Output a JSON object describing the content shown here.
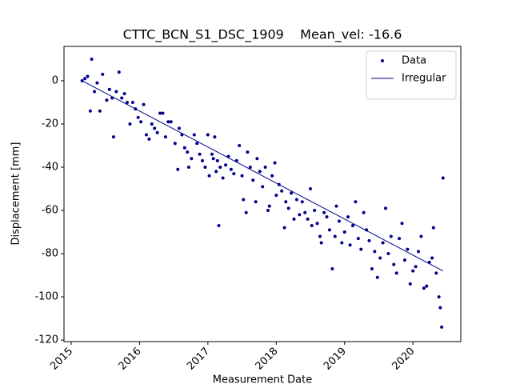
{
  "chart_data": {
    "type": "scatter",
    "title": "CTTC_BCN_S1_DSC_1909    Mean_vel: -16.6",
    "xlabel": "Measurement Date",
    "ylabel": "Displacement [mm]",
    "xlim": [
      2014.895,
      2020.7
    ],
    "ylim": [
      -120.7,
      15.9
    ],
    "xticks": [
      2015,
      2016,
      2017,
      2018,
      2019,
      2020
    ],
    "yticks": [
      -120,
      -100,
      -80,
      -60,
      -40,
      -20,
      0
    ],
    "grid": false,
    "legend": "upper right",
    "series": [
      {
        "name": "Data",
        "kind": "points",
        "color": "#00008b",
        "x": [
          2015.16,
          2015.2,
          2015.24,
          2015.28,
          2015.3,
          2015.34,
          2015.38,
          2015.42,
          2015.46,
          2015.52,
          2015.56,
          2015.6,
          2015.62,
          2015.66,
          2015.7,
          2015.74,
          2015.78,
          2015.82,
          2015.86,
          2015.9,
          2015.94,
          2015.98,
          2016.02,
          2016.06,
          2016.1,
          2016.14,
          2016.18,
          2016.22,
          2016.26,
          2016.3,
          2016.34,
          2016.38,
          2016.42,
          2016.46,
          2016.52,
          2016.56,
          2016.58,
          2016.62,
          2016.66,
          2016.7,
          2016.72,
          2016.76,
          2016.8,
          2016.84,
          2016.88,
          2016.92,
          2016.96,
          2017.0,
          2017.02,
          2017.06,
          2017.08,
          2017.1,
          2017.12,
          2017.14,
          2017.16,
          2017.18,
          2017.22,
          2017.26,
          2017.3,
          2017.34,
          2017.38,
          2017.42,
          2017.46,
          2017.5,
          2017.52,
          2017.56,
          2017.58,
          2017.62,
          2017.66,
          2017.7,
          2017.72,
          2017.76,
          2017.8,
          2017.84,
          2017.88,
          2017.9,
          2017.94,
          2017.98,
          2018.0,
          2018.04,
          2018.08,
          2018.12,
          2018.14,
          2018.18,
          2018.22,
          2018.26,
          2018.3,
          2018.34,
          2018.38,
          2018.42,
          2018.46,
          2018.5,
          2018.52,
          2018.56,
          2018.6,
          2018.64,
          2018.66,
          2018.7,
          2018.74,
          2018.78,
          2018.82,
          2018.86,
          2018.88,
          2018.92,
          2018.96,
          2019.0,
          2019.05,
          2019.08,
          2019.12,
          2019.16,
          2019.2,
          2019.24,
          2019.28,
          2019.32,
          2019.36,
          2019.4,
          2019.44,
          2019.48,
          2019.52,
          2019.56,
          2019.6,
          2019.64,
          2019.68,
          2019.72,
          2019.76,
          2019.8,
          2019.84,
          2019.88,
          2019.92,
          2019.96,
          2020.0,
          2020.04,
          2020.08,
          2020.12,
          2020.16,
          2020.2,
          2020.24,
          2020.28,
          2020.3,
          2020.34,
          2020.38,
          2020.4,
          2020.42,
          2020.44
        ],
        "values": [
          0,
          1,
          2,
          -14,
          10,
          -5,
          -1,
          -14,
          3,
          -9,
          -4,
          -8,
          -26,
          -5,
          4,
          -8,
          -6,
          -10,
          -20,
          -10,
          -13,
          -17,
          -19,
          -11,
          -25,
          -27,
          -20,
          -22,
          -24,
          -15,
          -15,
          -26,
          -19,
          -19,
          -29,
          -41,
          -22,
          -25,
          -31,
          -33,
          -40,
          -36,
          -25,
          -29,
          -34,
          -37,
          -40,
          -25,
          -44,
          -34,
          -36,
          -26,
          -42,
          -37,
          -67,
          -40,
          -45,
          -39,
          -35,
          -41,
          -43,
          -37,
          -30,
          -44,
          -55,
          -61,
          -33,
          -40,
          -46,
          -56,
          -36,
          -42,
          -49,
          -40,
          -60,
          -58,
          -44,
          -38,
          -53,
          -48,
          -51,
          -68,
          -56,
          -59,
          -52,
          -64,
          -55,
          -62,
          -56,
          -61,
          -64,
          -50,
          -67,
          -60,
          -66,
          -72,
          -75,
          -61,
          -63,
          -69,
          -87,
          -72,
          -58,
          -65,
          -75,
          -70,
          -63,
          -76,
          -67,
          -56,
          -73,
          -78,
          -61,
          -69,
          -74,
          -87,
          -79,
          -91,
          -82,
          -75,
          -59,
          -80,
          -72,
          -85,
          -89,
          -73,
          -66,
          -83,
          -78,
          -94,
          -88,
          -86,
          -79,
          -72,
          -96,
          -95,
          -84,
          -82,
          -68,
          -89,
          -100,
          -105,
          -114,
          -45
        ]
      },
      {
        "name": "Irregular",
        "kind": "line",
        "color": "#00008b",
        "x": [
          2015.16,
          2020.44
        ],
        "values": [
          0,
          -88
        ]
      }
    ]
  }
}
